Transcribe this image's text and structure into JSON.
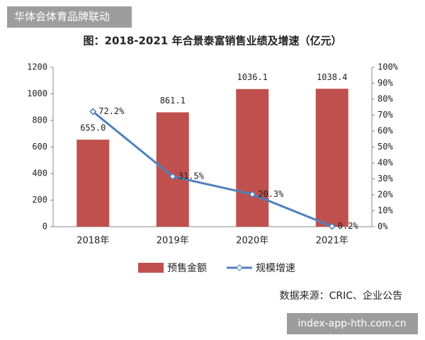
{
  "watermark_top": "华体会体育品牌联动",
  "watermark_bottom": "index-app-hth.com.cn",
  "source": "数据来源：CRIC、企业公告",
  "chart_data": {
    "type": "bar-line",
    "title": "图：2018-2021 年合景泰富销售业绩及增速（亿元）",
    "categories": [
      "2018年",
      "2019年",
      "2020年",
      "2021年"
    ],
    "series": [
      {
        "name": "预售金额",
        "color": "#c0504d",
        "values": [
          655.0,
          861.1,
          1036.1,
          1038.4
        ],
        "value_labels": [
          "655.0",
          "861.1",
          "1036.1",
          "1038.4"
        ]
      },
      {
        "name": "规模增速",
        "color": "#4f81bd",
        "axis": "y2",
        "values": [
          72.2,
          31.5,
          20.3,
          0.2
        ],
        "value_labels": [
          "72.2%",
          "31.5%",
          "20.3%",
          "0.2%"
        ]
      }
    ],
    "ylim": [
      0,
      1200
    ],
    "yticks": [
      0,
      200,
      400,
      600,
      800,
      1000,
      1200
    ],
    "y2lim": [
      0,
      100
    ],
    "y2ticks": [
      {
        "value": 0,
        "label": "0%"
      },
      {
        "value": 10,
        "label": "10%"
      },
      {
        "value": 20,
        "label": "20%"
      },
      {
        "value": 30,
        "label": "30%"
      },
      {
        "value": 40,
        "label": "40%"
      },
      {
        "value": 50,
        "label": "50%"
      },
      {
        "value": 60,
        "label": "60%"
      },
      {
        "value": 70,
        "label": "70%"
      },
      {
        "value": 80,
        "label": "80%"
      },
      {
        "value": 90,
        "label": "90%"
      },
      {
        "value": 100,
        "label": "100%"
      }
    ],
    "legend": "bottom"
  }
}
